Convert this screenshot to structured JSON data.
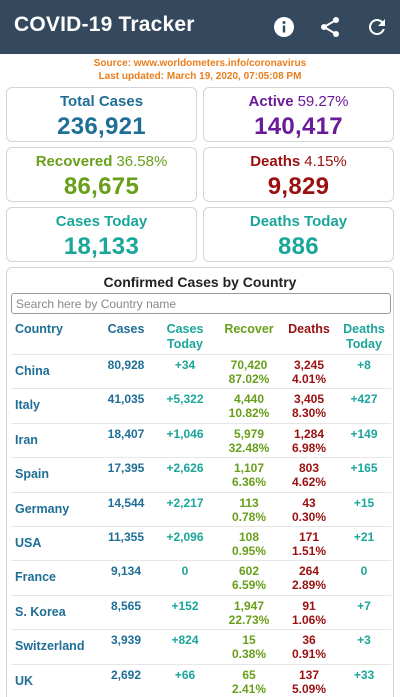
{
  "appbar": {
    "title": "COVID-19 Tracker",
    "icons": [
      "info-icon",
      "share-icon",
      "refresh-icon"
    ]
  },
  "source": {
    "line1": "Source: www.worldometers.info/coronavirus",
    "line2": "Last updated: March 19, 2020, 07:05:08 PM"
  },
  "stats": {
    "total": {
      "label": "Total Cases",
      "value": "236,921"
    },
    "active": {
      "label": "Active",
      "pct": "59.27%",
      "value": "140,417"
    },
    "recovered": {
      "label": "Recovered",
      "pct": "36.58%",
      "value": "86,675"
    },
    "deaths": {
      "label": "Deaths",
      "pct": "4.15%",
      "value": "9,829"
    },
    "cases_today": {
      "label": "Cases Today",
      "value": "18,133"
    },
    "deaths_today": {
      "label": "Deaths Today",
      "value": "886"
    }
  },
  "table": {
    "heading": "Confirmed Cases by Country",
    "search_placeholder": "Search here by Country name",
    "headers": {
      "country": "Country",
      "cases": "Cases",
      "cases_today": "Cases\nToday",
      "recover": "Recover",
      "deaths": "Deaths",
      "deaths_today": "Deaths\nToday"
    },
    "rows": [
      {
        "country": "China",
        "cases": "80,928",
        "today": "+34",
        "rec": "70,420",
        "rec_pct": "87.02%",
        "dth": "3,245",
        "dth_pct": "4.01%",
        "dtoday": "+8"
      },
      {
        "country": "Italy",
        "cases": "41,035",
        "today": "+5,322",
        "rec": "4,440",
        "rec_pct": "10.82%",
        "dth": "3,405",
        "dth_pct": "8.30%",
        "dtoday": "+427"
      },
      {
        "country": "Iran",
        "cases": "18,407",
        "today": "+1,046",
        "rec": "5,979",
        "rec_pct": "32.48%",
        "dth": "1,284",
        "dth_pct": "6.98%",
        "dtoday": "+149"
      },
      {
        "country": "Spain",
        "cases": "17,395",
        "today": "+2,626",
        "rec": "1,107",
        "rec_pct": "6.36%",
        "dth": "803",
        "dth_pct": "4.62%",
        "dtoday": "+165"
      },
      {
        "country": "Germany",
        "cases": "14,544",
        "today": "+2,217",
        "rec": "113",
        "rec_pct": "0.78%",
        "dth": "43",
        "dth_pct": "0.30%",
        "dtoday": "+15"
      },
      {
        "country": "USA",
        "cases": "11,355",
        "today": "+2,096",
        "rec": "108",
        "rec_pct": "0.95%",
        "dth": "171",
        "dth_pct": "1.51%",
        "dtoday": "+21"
      },
      {
        "country": "France",
        "cases": "9,134",
        "today": "0",
        "rec": "602",
        "rec_pct": "6.59%",
        "dth": "264",
        "dth_pct": "2.89%",
        "dtoday": "0"
      },
      {
        "country": "S. Korea",
        "cases": "8,565",
        "today": "+152",
        "rec": "1,947",
        "rec_pct": "22.73%",
        "dth": "91",
        "dth_pct": "1.06%",
        "dtoday": "+7"
      },
      {
        "country": "Switzerland",
        "cases": "3,939",
        "today": "+824",
        "rec": "15",
        "rec_pct": "0.38%",
        "dth": "36",
        "dth_pct": "0.91%",
        "dtoday": "+3"
      },
      {
        "country": "UK",
        "cases": "2,692",
        "today": "+66",
        "rec": "65",
        "rec_pct": "2.41%",
        "dth": "137",
        "dth_pct": "5.09%",
        "dtoday": "+33"
      }
    ]
  },
  "colors": {
    "appbar": "#34495e",
    "source": "#e87e1e",
    "blue": "#1f6e96",
    "purple": "#6a1b9a",
    "green": "#689f1a",
    "red": "#9a0f0f",
    "teal": "#1ba69a"
  }
}
